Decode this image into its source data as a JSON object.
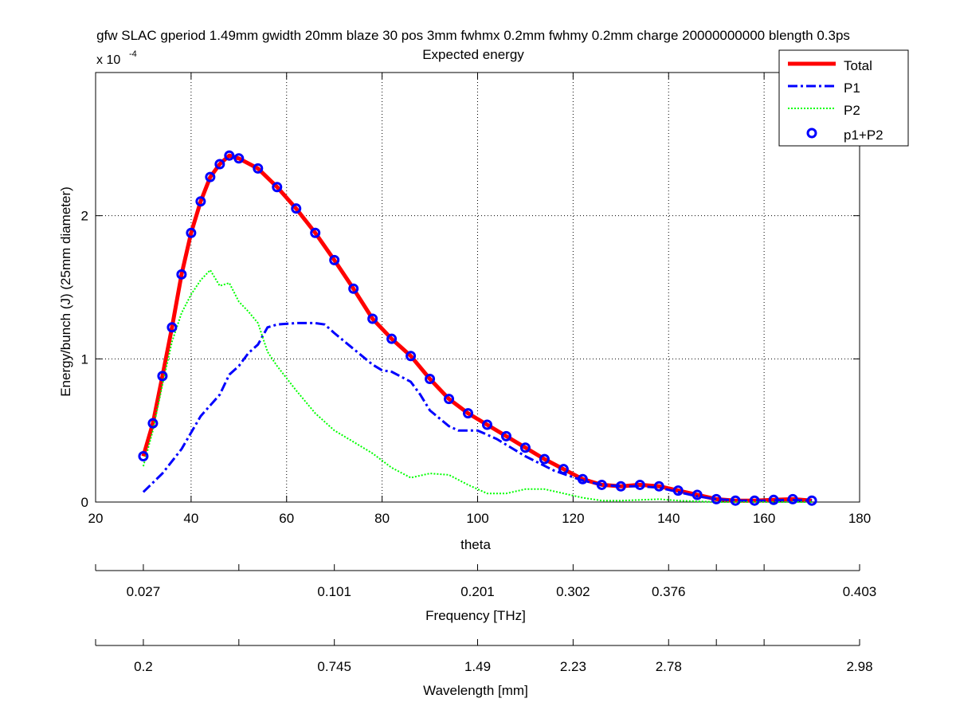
{
  "chart_data": {
    "type": "line",
    "title": "gfw SLAC gperiod 1.49mm gwidth 20mm blaze 30 pos 3mm fwhmx 0.2mm fwhmy 0.2mm charge 20000000000 blength 0.3ps",
    "subtitle": "Expected energy",
    "xlabel": "theta",
    "ylabel": "Energy/bunch (J) (25mm diameter)",
    "y_multiplier_base": "x 10",
    "y_multiplier_exp": "-4",
    "xlim": [
      20,
      180
    ],
    "ylim": [
      0,
      3
    ],
    "xticks": [
      20,
      40,
      60,
      80,
      100,
      120,
      140,
      160,
      180
    ],
    "xtick_labels": [
      "20",
      "40",
      "60",
      "80",
      "100",
      "120",
      "140",
      "160",
      "180"
    ],
    "yticks": [
      0,
      1,
      2
    ],
    "ytick_labels": [
      "0",
      "1",
      "2"
    ],
    "grid": true,
    "legend_position": "top-right",
    "series": [
      {
        "name": "Total",
        "style": "solid",
        "color": "#ff0000",
        "x": [
          30,
          32,
          34,
          36,
          38,
          40,
          42,
          44,
          46,
          48,
          50,
          54,
          58,
          62,
          66,
          70,
          74,
          78,
          82,
          86,
          90,
          94,
          98,
          102,
          106,
          110,
          114,
          118,
          122,
          126,
          130,
          134,
          138,
          142,
          146,
          150,
          154,
          158,
          162,
          166,
          170
        ],
        "y": [
          0.32,
          0.55,
          0.88,
          1.22,
          1.59,
          1.88,
          2.1,
          2.27,
          2.36,
          2.42,
          2.4,
          2.33,
          2.2,
          2.05,
          1.88,
          1.69,
          1.49,
          1.28,
          1.14,
          1.02,
          0.86,
          0.72,
          0.62,
          0.54,
          0.46,
          0.38,
          0.3,
          0.23,
          0.16,
          0.12,
          0.11,
          0.12,
          0.11,
          0.08,
          0.05,
          0.02,
          0.01,
          0.01,
          0.015,
          0.02,
          0.01
        ]
      },
      {
        "name": "P1",
        "style": "dashdot",
        "color": "#0000ff",
        "x": [
          30,
          34,
          38,
          42,
          46,
          48,
          50,
          52,
          54,
          56,
          58,
          62,
          66,
          68,
          70,
          74,
          78,
          80,
          82,
          86,
          88,
          90,
          94,
          96,
          100,
          104,
          110,
          116,
          122,
          126,
          130,
          134,
          138,
          142,
          146,
          150,
          155,
          160,
          165,
          170
        ],
        "y": [
          0.07,
          0.2,
          0.37,
          0.6,
          0.75,
          0.89,
          0.95,
          1.04,
          1.1,
          1.22,
          1.24,
          1.25,
          1.25,
          1.24,
          1.18,
          1.07,
          0.96,
          0.92,
          0.91,
          0.84,
          0.75,
          0.64,
          0.53,
          0.5,
          0.5,
          0.44,
          0.32,
          0.22,
          0.15,
          0.12,
          0.11,
          0.11,
          0.1,
          0.07,
          0.04,
          0.02,
          0.01,
          0.01,
          0.015,
          0.01
        ]
      },
      {
        "name": "P2",
        "style": "dotted",
        "color": "#00ff00",
        "x": [
          30,
          32,
          34,
          36,
          38,
          40,
          42,
          44,
          46,
          48,
          50,
          52,
          54,
          56,
          58,
          62,
          66,
          70,
          74,
          78,
          82,
          86,
          90,
          94,
          98,
          102,
          106,
          110,
          114,
          118,
          122,
          126,
          130,
          134,
          138,
          142,
          146,
          150,
          155,
          160,
          165,
          170
        ],
        "y": [
          0.25,
          0.5,
          0.82,
          1.12,
          1.32,
          1.45,
          1.55,
          1.62,
          1.51,
          1.53,
          1.4,
          1.33,
          1.25,
          1.05,
          0.95,
          0.78,
          0.62,
          0.5,
          0.42,
          0.34,
          0.24,
          0.17,
          0.2,
          0.19,
          0.12,
          0.06,
          0.06,
          0.09,
          0.09,
          0.06,
          0.03,
          0.01,
          0.01,
          0.015,
          0.02,
          0.01,
          0.005,
          0.0,
          0.0,
          0.0,
          0.0,
          0.0
        ]
      },
      {
        "name": "p1+P2",
        "style": "markers",
        "color": "#0000ff",
        "x": [
          30,
          32,
          34,
          36,
          38,
          40,
          42,
          44,
          46,
          48,
          50,
          54,
          58,
          62,
          66,
          70,
          74,
          78,
          82,
          86,
          90,
          94,
          98,
          102,
          106,
          110,
          114,
          118,
          122,
          126,
          130,
          134,
          138,
          142,
          146,
          150,
          154,
          158,
          162,
          166,
          170
        ],
        "y": [
          0.32,
          0.55,
          0.88,
          1.22,
          1.59,
          1.88,
          2.1,
          2.27,
          2.36,
          2.42,
          2.4,
          2.33,
          2.2,
          2.05,
          1.88,
          1.69,
          1.49,
          1.28,
          1.14,
          1.02,
          0.86,
          0.72,
          0.62,
          0.54,
          0.46,
          0.38,
          0.3,
          0.23,
          0.16,
          0.12,
          0.11,
          0.12,
          0.11,
          0.08,
          0.05,
          0.02,
          0.01,
          0.01,
          0.015,
          0.02,
          0.01
        ]
      }
    ],
    "secondary_axes": [
      {
        "label": "Frequency [THz]",
        "ticks": [
          20,
          30,
          50,
          70,
          100,
          120,
          140,
          150,
          160,
          180
        ],
        "tick_labels": [
          "",
          "0.027",
          "",
          "0.101",
          "0.201",
          "0.302",
          "0.376",
          "",
          "",
          "0.403"
        ]
      },
      {
        "label": "Wavelength [mm]",
        "ticks": [
          20,
          30,
          50,
          70,
          100,
          120,
          140,
          150,
          160,
          180
        ],
        "tick_labels": [
          "",
          "0.2",
          "",
          "0.745",
          "1.49",
          "2.23",
          "2.78",
          "",
          "",
          "2.98"
        ]
      }
    ]
  }
}
